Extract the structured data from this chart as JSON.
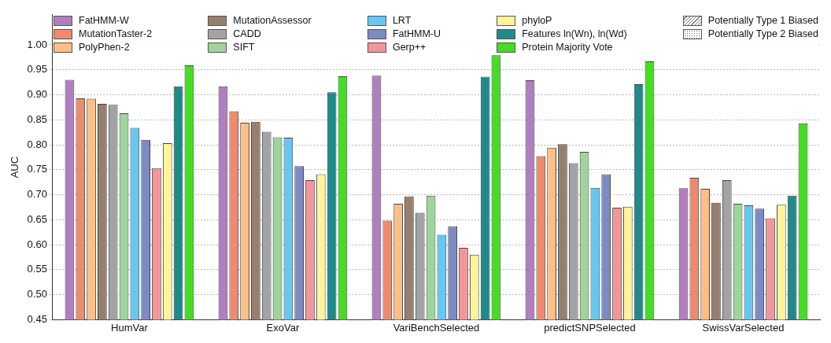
{
  "chart_data": {
    "type": "bar",
    "ylabel": "AUC",
    "categories": [
      "HumVar",
      "ExoVar",
      "VariBenchSelected",
      "predictSNPSelected",
      "SwissVarSelected"
    ],
    "series": [
      {
        "name": "FatHMM-W",
        "color": "#b07fbf",
        "values": [
          0.93,
          0.917,
          0.938,
          0.929,
          0.713
        ]
      },
      {
        "name": "MutationTaster-2",
        "color": "#f08a6c",
        "values": [
          0.893,
          0.867,
          0.648,
          0.777,
          0.734
        ]
      },
      {
        "name": "PolyPhen-2",
        "color": "#fdbf85",
        "values": [
          0.892,
          0.844,
          0.682,
          0.794,
          0.712
        ]
      },
      {
        "name": "MutationAssessor",
        "color": "#977f6d",
        "values": [
          0.882,
          0.846,
          0.697,
          0.801,
          0.684
        ]
      },
      {
        "name": "CADD",
        "color": "#a3a3a3",
        "values": [
          0.88,
          0.826,
          0.664,
          0.763,
          0.729
        ]
      },
      {
        "name": "SIFT",
        "color": "#9fd49a",
        "values": [
          0.863,
          0.815,
          0.698,
          0.786,
          0.682
        ]
      },
      {
        "name": "LRT",
        "color": "#66c8f0",
        "values": [
          0.834,
          0.814,
          0.62,
          0.714,
          0.679
        ]
      },
      {
        "name": "FatHMM-U",
        "color": "#7d8bc4",
        "values": [
          0.81,
          0.757,
          0.637,
          0.741,
          0.672
        ]
      },
      {
        "name": "Gerp++",
        "color": "#f3959a",
        "values": [
          0.753,
          0.729,
          0.594,
          0.674,
          0.653
        ]
      },
      {
        "name": "phyloP",
        "color": "#fff49a",
        "values": [
          0.803,
          0.741,
          0.58,
          0.676,
          0.68
        ]
      },
      {
        "name": "Features ln(Wn), ln(Wd)",
        "color": "#1f8a8a",
        "values": [
          0.917,
          0.905,
          0.936,
          0.921,
          0.698
        ]
      },
      {
        "name": "Protein Majority Vote",
        "color": "#44dd22",
        "values": [
          0.959,
          0.937,
          0.979,
          0.967,
          0.843
        ]
      }
    ],
    "annotations": [
      "Potentially Type 1 Biased",
      "Potentially Type 2 Biased"
    ],
    "ylim": [
      0.45,
      1.06
    ],
    "yticks": [
      0.45,
      {
        "value": 0.5,
        "label": "0.50"
      },
      0.55,
      {
        "value": 0.6,
        "label": "0.60"
      },
      0.65,
      {
        "value": 0.7,
        "label": "0.70"
      },
      0.75,
      {
        "value": 0.8,
        "label": "0.80"
      },
      0.85,
      {
        "value": 0.9,
        "label": "0.90"
      },
      0.95,
      {
        "value": 1.0,
        "label": "1.00"
      }
    ],
    "grid": "y",
    "legend": "top"
  }
}
